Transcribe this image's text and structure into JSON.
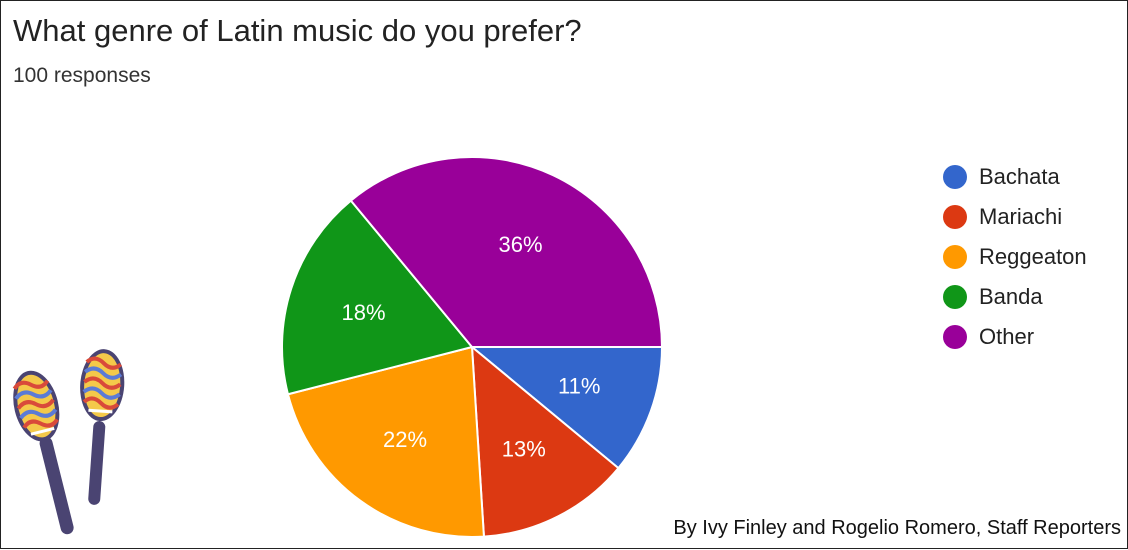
{
  "title": "What genre of Latin music do you prefer?",
  "subtitle": "100 responses",
  "credit": "By Ivy Finley and Rogelio Romero, Staff Reporters",
  "chart_data": {
    "type": "pie",
    "title": "What genre of Latin music do you prefer?",
    "subtitle": "100 responses",
    "legend_position": "right",
    "slices": [
      {
        "label": "Bachata",
        "value": 11,
        "display": "11%",
        "color": "#3366cc"
      },
      {
        "label": "Mariachi",
        "value": 13,
        "display": "13%",
        "color": "#dc3912"
      },
      {
        "label": "Reggeaton",
        "value": 22,
        "display": "22%",
        "color": "#ff9900"
      },
      {
        "label": "Banda",
        "value": 18,
        "display": "18%",
        "color": "#109618"
      },
      {
        "label": "Other",
        "value": 36,
        "display": "36%",
        "color": "#990099"
      }
    ]
  },
  "decoration": {
    "icon": "maracas-icon"
  }
}
